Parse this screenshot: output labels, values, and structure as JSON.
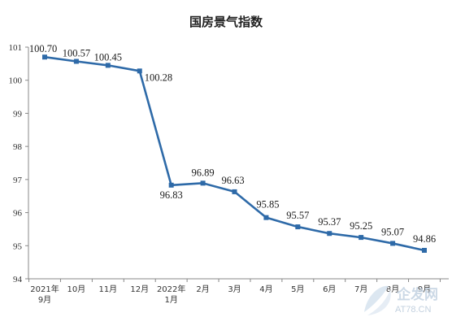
{
  "colors": {
    "line": "#2e6aa8",
    "axis": "#888888",
    "text": "#222222",
    "watermark": "#c9d6e3"
  },
  "chart_data": {
    "type": "line",
    "title": "国房景气指数",
    "xlabel": "",
    "ylabel": "",
    "categories": [
      "2021年\n9月",
      "10月",
      "11月",
      "12月",
      "2022年\n1月",
      "2月",
      "3月",
      "4月",
      "5月",
      "6月",
      "7月",
      "8月",
      "9月"
    ],
    "series": [
      {
        "values": [
          100.7,
          100.57,
          100.45,
          100.28,
          96.83,
          96.89,
          96.63,
          95.85,
          95.57,
          95.37,
          95.25,
          95.07,
          94.86
        ]
      }
    ],
    "data_labels": [
      "100.70",
      "100.57",
      "100.45",
      "100.28",
      "96.83",
      "96.89",
      "96.63",
      "95.85",
      "95.57",
      "95.37",
      "95.25",
      "95.07",
      "94.86"
    ],
    "ylim": [
      94,
      101
    ],
    "yticks": [
      94,
      95,
      96,
      97,
      98,
      99,
      100,
      101
    ],
    "grid": false,
    "legend": "none"
  },
  "watermark": {
    "text_cn": "企发网",
    "text_en": "AT78.CN"
  }
}
